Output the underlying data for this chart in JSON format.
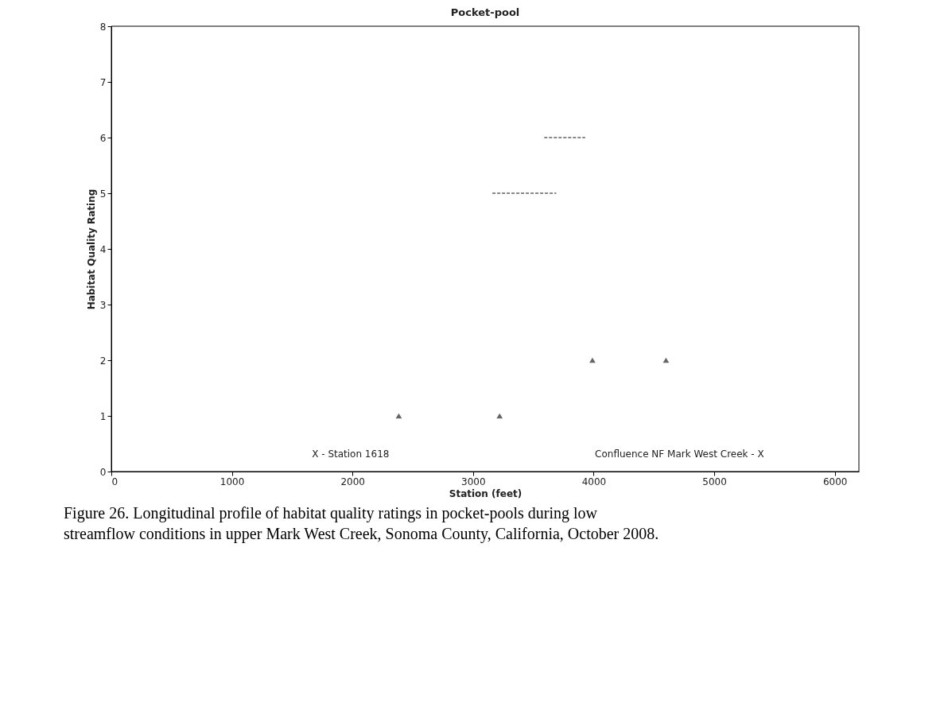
{
  "chart_data": {
    "type": "scatter",
    "title": "Pocket-pool",
    "xlabel": "Station (feet)",
    "ylabel": "Habitat Quality Rating",
    "xlim": [
      0,
      6200
    ],
    "xticks": [
      0,
      1000,
      2000,
      3000,
      4000,
      5000,
      6000
    ],
    "ylim": [
      0,
      8
    ],
    "yticks": [
      0,
      1,
      2,
      3,
      4,
      5,
      6,
      7,
      8
    ],
    "grid": false,
    "series": [
      {
        "marker": "triangle",
        "color": "#666666",
        "x": [
          2384,
          3220,
          3990,
          4600
        ],
        "values": [
          1,
          1,
          2,
          2
        ]
      },
      {
        "type": "line",
        "line_style": "dashed",
        "color": "#888888",
        "x": [
          3160,
          3690
        ],
        "values": [
          5,
          5
        ]
      },
      {
        "type": "line",
        "line_style": "dashed",
        "color": "#888888",
        "x": [
          3590,
          3930
        ],
        "values": [
          6,
          6
        ]
      }
    ],
    "annotations": [
      "X - Station 1618",
      "Confluence NF Mark West Creek - X",
      "Figure 26.  Longitudinal profile of habitat quality ratings in pocket-pools during low streamflow conditions in upper Mark West Creek, Sonoma County, California, October 2008."
    ]
  }
}
